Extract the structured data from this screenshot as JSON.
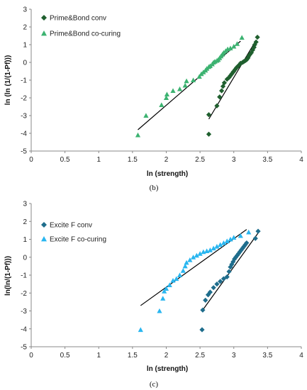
{
  "chart_data": [
    {
      "type": "scatter",
      "caption": "(b)",
      "xlabel": "ln (strength)",
      "ylabel": "ln (ln (1/(1-Pf)))",
      "xlim": [
        0,
        4
      ],
      "ylim": [
        -5,
        3
      ],
      "xticks": [
        "0",
        "0.5",
        "1",
        "1.5",
        "2",
        "2.5",
        "3",
        "3.5",
        "4"
      ],
      "yticks": [
        "3",
        "2",
        "1",
        "0",
        "-1",
        "-2",
        "-3",
        "-4",
        "-5"
      ],
      "grid": false,
      "legend_position": "top-left",
      "series": [
        {
          "name": "Prime&Bond conv",
          "marker": "diamond",
          "color": "#1f5f2e",
          "x": [
            2.63,
            2.63,
            2.75,
            2.79,
            2.82,
            2.84,
            2.86,
            2.9,
            2.93,
            2.95,
            2.97,
            2.99,
            3.0,
            3.02,
            3.04,
            3.06,
            3.08,
            3.1,
            3.13,
            3.15,
            3.17,
            3.19,
            3.21,
            3.22,
            3.24,
            3.26,
            3.28,
            3.3,
            3.31,
            3.33,
            3.35
          ],
          "y": [
            -4.05,
            -2.95,
            -2.45,
            -1.95,
            -1.6,
            -1.35,
            -1.15,
            -0.95,
            -0.85,
            -0.75,
            -0.65,
            -0.55,
            -0.5,
            -0.4,
            -0.3,
            -0.22,
            -0.15,
            -0.05,
            0.0,
            0.05,
            0.1,
            0.15,
            0.25,
            0.35,
            0.45,
            0.55,
            0.7,
            0.85,
            1.0,
            1.15,
            1.42
          ]
        },
        {
          "name": "Prime&Bond co-curing",
          "marker": "triangle",
          "color": "#3cb371",
          "x": [
            1.58,
            1.7,
            1.93,
            2.0,
            2.01,
            2.1,
            2.2,
            2.28,
            2.3,
            2.4,
            2.49,
            2.52,
            2.55,
            2.58,
            2.6,
            2.63,
            2.65,
            2.68,
            2.7,
            2.72,
            2.75,
            2.77,
            2.79,
            2.81,
            2.83,
            2.85,
            2.88,
            2.91,
            2.95,
            3.0,
            3.05,
            3.12
          ],
          "y": [
            -4.1,
            -3.0,
            -2.4,
            -2.0,
            -1.8,
            -1.6,
            -1.5,
            -1.3,
            -1.05,
            -1.0,
            -0.8,
            -0.65,
            -0.55,
            -0.45,
            -0.35,
            -0.25,
            -0.2,
            -0.1,
            0.0,
            0.05,
            0.1,
            0.15,
            0.25,
            0.35,
            0.45,
            0.55,
            0.65,
            0.75,
            0.8,
            0.9,
            1.05,
            1.4
          ]
        }
      ],
      "trendlines": [
        {
          "series": "Prime&Bond conv",
          "x": [
            2.63,
            3.33
          ],
          "y": [
            -3.2,
            1.25
          ]
        },
        {
          "series": "Prime&Bond co-curing",
          "x": [
            1.58,
            3.1
          ],
          "y": [
            -3.8,
            1.2
          ]
        }
      ]
    },
    {
      "type": "scatter",
      "caption": "(c)",
      "xlabel": "ln (strength)",
      "ylabel": "ln(ln/(1-Pf)))",
      "xlim": [
        0,
        4
      ],
      "ylim": [
        -5,
        3
      ],
      "xticks": [
        "0",
        "0.5",
        "1",
        "1.5",
        "2",
        "2.5",
        "3",
        "3.5",
        "4"
      ],
      "yticks": [
        "3",
        "2",
        "1",
        "0",
        "-1",
        "-2",
        "-3",
        "-4",
        "-5"
      ],
      "grid": false,
      "legend_position": "top-left",
      "series": [
        {
          "name": "Excite F conv",
          "marker": "diamond",
          "color": "#1f6d8c",
          "x": [
            2.53,
            2.54,
            2.58,
            2.62,
            2.65,
            2.7,
            2.75,
            2.8,
            2.85,
            2.9,
            2.93,
            2.95,
            2.97,
            2.99,
            3.01,
            3.03,
            3.05,
            3.07,
            3.09,
            3.11,
            3.13,
            3.15,
            3.17,
            3.19,
            3.32,
            3.36
          ],
          "y": [
            -4.05,
            -2.95,
            -2.4,
            -2.1,
            -1.95,
            -1.7,
            -1.5,
            -1.35,
            -1.2,
            -1.1,
            -0.8,
            -0.55,
            -0.4,
            -0.25,
            -0.1,
            0.0,
            0.1,
            0.2,
            0.3,
            0.4,
            0.5,
            0.6,
            0.7,
            0.8,
            1.05,
            1.45
          ]
        },
        {
          "name": "Excite F co-curing",
          "marker": "triangle",
          "color": "#29b6f0",
          "x": [
            1.62,
            1.9,
            1.95,
            1.97,
            2.0,
            2.05,
            2.1,
            2.15,
            2.2,
            2.25,
            2.28,
            2.3,
            2.35,
            2.4,
            2.45,
            2.5,
            2.55,
            2.6,
            2.65,
            2.7,
            2.75,
            2.8,
            2.85,
            2.9,
            2.95,
            3.0,
            3.1,
            3.22
          ],
          "y": [
            -4.05,
            -3.0,
            -2.3,
            -1.9,
            -1.75,
            -1.55,
            -1.3,
            -1.2,
            -1.0,
            -0.75,
            -0.5,
            -0.3,
            -0.15,
            0.0,
            0.1,
            0.2,
            0.3,
            0.35,
            0.4,
            0.5,
            0.6,
            0.7,
            0.8,
            0.9,
            1.0,
            1.1,
            1.2,
            1.4
          ]
        }
      ],
      "trendlines": [
        {
          "series": "Excite F conv",
          "x": [
            2.53,
            3.36
          ],
          "y": [
            -3.0,
            1.35
          ]
        },
        {
          "series": "Excite F co-curing",
          "x": [
            1.62,
            3.19
          ],
          "y": [
            -2.7,
            1.55
          ]
        }
      ]
    }
  ]
}
